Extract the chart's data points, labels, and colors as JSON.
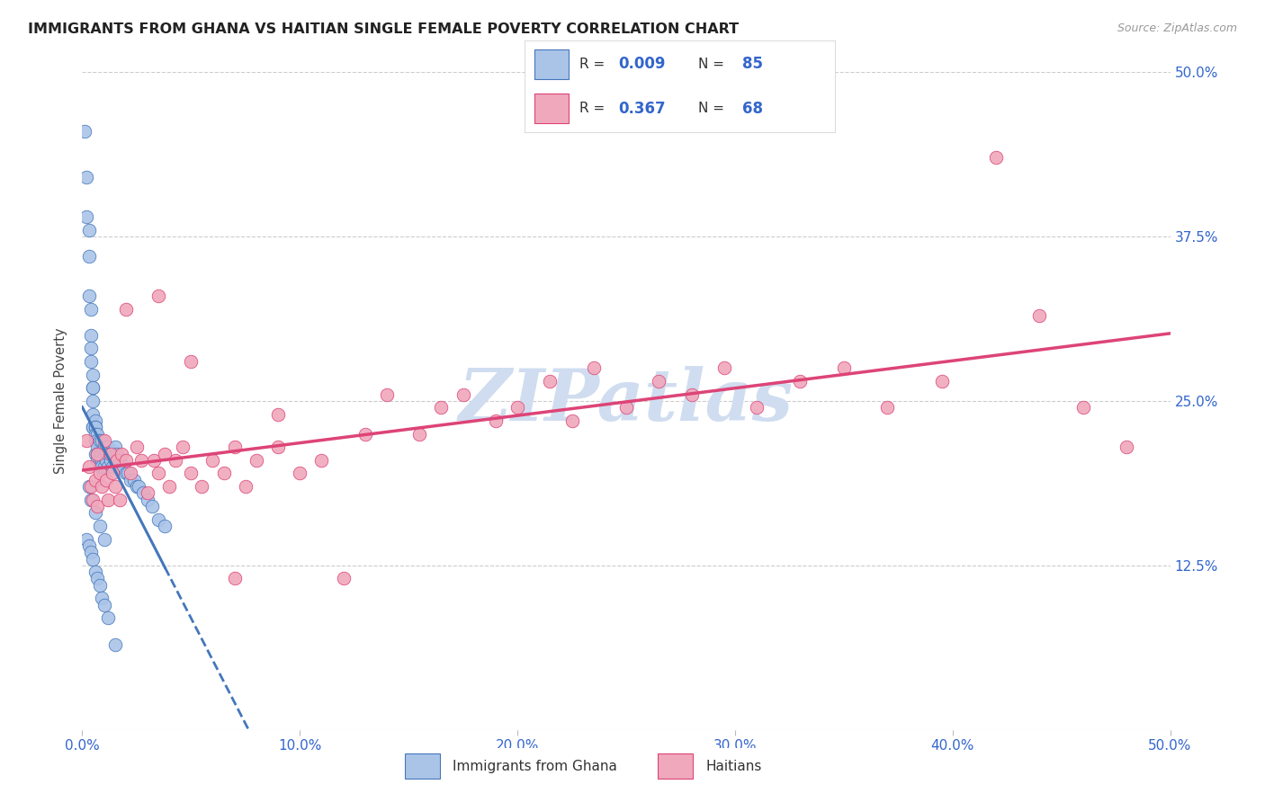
{
  "title": "IMMIGRANTS FROM GHANA VS HAITIAN SINGLE FEMALE POVERTY CORRELATION CHART",
  "source": "Source: ZipAtlas.com",
  "ylabel": "Single Female Poverty",
  "legend_label1": "Immigrants from Ghana",
  "legend_label2": "Haitians",
  "R1": "0.009",
  "N1": "85",
  "R2": "0.367",
  "N2": "68",
  "xmin": 0.0,
  "xmax": 0.5,
  "ymin": 0.0,
  "ymax": 0.5,
  "yticks": [
    0.0,
    0.125,
    0.25,
    0.375,
    0.5
  ],
  "ytick_labels": [
    "",
    "12.5%",
    "25.0%",
    "37.5%",
    "50.0%"
  ],
  "color_ghana": "#aac4e8",
  "color_haiti": "#f0a8bc",
  "color_ghana_line": "#4477bb",
  "color_haiti_line": "#dd4477",
  "color_text_blue": "#3366cc",
  "watermark": "ZIPatlas",
  "watermark_color": "#d0ddf0",
  "background_color": "#ffffff",
  "ghana_x": [
    0.001,
    0.002,
    0.002,
    0.003,
    0.003,
    0.003,
    0.004,
    0.004,
    0.004,
    0.004,
    0.005,
    0.005,
    0.005,
    0.005,
    0.005,
    0.005,
    0.005,
    0.006,
    0.006,
    0.006,
    0.006,
    0.006,
    0.006,
    0.006,
    0.007,
    0.007,
    0.007,
    0.007,
    0.007,
    0.007,
    0.008,
    0.008,
    0.008,
    0.008,
    0.009,
    0.009,
    0.009,
    0.009,
    0.01,
    0.01,
    0.01,
    0.011,
    0.011,
    0.011,
    0.012,
    0.012,
    0.012,
    0.013,
    0.013,
    0.014,
    0.014,
    0.015,
    0.015,
    0.016,
    0.016,
    0.017,
    0.018,
    0.019,
    0.02,
    0.021,
    0.022,
    0.024,
    0.025,
    0.026,
    0.028,
    0.03,
    0.032,
    0.035,
    0.038,
    0.002,
    0.003,
    0.004,
    0.005,
    0.006,
    0.007,
    0.008,
    0.009,
    0.01,
    0.012,
    0.015,
    0.003,
    0.004,
    0.006,
    0.008,
    0.01
  ],
  "ghana_y": [
    0.455,
    0.42,
    0.39,
    0.38,
    0.36,
    0.33,
    0.32,
    0.3,
    0.29,
    0.28,
    0.27,
    0.26,
    0.26,
    0.25,
    0.24,
    0.23,
    0.23,
    0.235,
    0.23,
    0.23,
    0.225,
    0.22,
    0.22,
    0.21,
    0.225,
    0.22,
    0.215,
    0.21,
    0.21,
    0.205,
    0.22,
    0.21,
    0.205,
    0.2,
    0.22,
    0.21,
    0.205,
    0.2,
    0.215,
    0.21,
    0.2,
    0.215,
    0.21,
    0.205,
    0.215,
    0.21,
    0.2,
    0.21,
    0.205,
    0.21,
    0.2,
    0.215,
    0.205,
    0.21,
    0.2,
    0.205,
    0.2,
    0.2,
    0.195,
    0.195,
    0.19,
    0.19,
    0.185,
    0.185,
    0.18,
    0.175,
    0.17,
    0.16,
    0.155,
    0.145,
    0.14,
    0.135,
    0.13,
    0.12,
    0.115,
    0.11,
    0.1,
    0.095,
    0.085,
    0.065,
    0.185,
    0.175,
    0.165,
    0.155,
    0.145
  ],
  "haiti_x": [
    0.002,
    0.003,
    0.004,
    0.005,
    0.006,
    0.007,
    0.007,
    0.008,
    0.009,
    0.01,
    0.011,
    0.012,
    0.013,
    0.014,
    0.015,
    0.016,
    0.017,
    0.018,
    0.02,
    0.022,
    0.025,
    0.027,
    0.03,
    0.033,
    0.035,
    0.038,
    0.04,
    0.043,
    0.046,
    0.05,
    0.055,
    0.06,
    0.065,
    0.07,
    0.075,
    0.08,
    0.09,
    0.1,
    0.11,
    0.12,
    0.13,
    0.14,
    0.155,
    0.165,
    0.175,
    0.19,
    0.2,
    0.215,
    0.225,
    0.235,
    0.25,
    0.265,
    0.28,
    0.295,
    0.31,
    0.33,
    0.35,
    0.37,
    0.395,
    0.42,
    0.44,
    0.46,
    0.48,
    0.02,
    0.035,
    0.05,
    0.07,
    0.09
  ],
  "haiti_y": [
    0.22,
    0.2,
    0.185,
    0.175,
    0.19,
    0.21,
    0.17,
    0.195,
    0.185,
    0.22,
    0.19,
    0.175,
    0.21,
    0.195,
    0.185,
    0.205,
    0.175,
    0.21,
    0.205,
    0.195,
    0.215,
    0.205,
    0.18,
    0.205,
    0.195,
    0.21,
    0.185,
    0.205,
    0.215,
    0.195,
    0.185,
    0.205,
    0.195,
    0.215,
    0.185,
    0.205,
    0.215,
    0.195,
    0.205,
    0.115,
    0.225,
    0.255,
    0.225,
    0.245,
    0.255,
    0.235,
    0.245,
    0.265,
    0.235,
    0.275,
    0.245,
    0.265,
    0.255,
    0.275,
    0.245,
    0.265,
    0.275,
    0.245,
    0.265,
    0.435,
    0.315,
    0.245,
    0.215,
    0.32,
    0.33,
    0.28,
    0.115,
    0.24
  ]
}
